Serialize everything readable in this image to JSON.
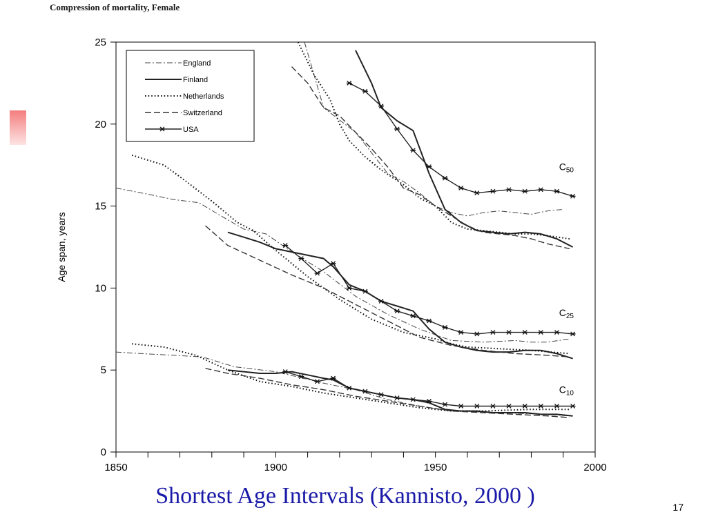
{
  "slide": {
    "title": "Shortest Age Intervals (Kannisto, 2000 )",
    "page_number": "17",
    "title_color": "#1a1aa8",
    "accent_color": "#f47e7e"
  },
  "chart_data": {
    "type": "line",
    "title": "Compression of mortality, Female",
    "xlabel": "",
    "ylabel": "Age span, years",
    "xlim": [
      1850,
      2000
    ],
    "ylim": [
      0,
      25
    ],
    "x_ticks": [
      1850,
      1900,
      1950,
      2000
    ],
    "y_ticks": [
      0,
      5,
      10,
      15,
      20,
      25
    ],
    "grid": false,
    "legend_position": "top-left",
    "annotations": [
      {
        "label": "C",
        "sub": "50",
        "x": 1991,
        "y": 17.2
      },
      {
        "label": "C",
        "sub": "25",
        "x": 1991,
        "y": 8.3
      },
      {
        "label": "C",
        "sub": "10",
        "x": 1991,
        "y": 3.6
      }
    ],
    "series": [
      {
        "name": "England",
        "style": "dashdot",
        "color": "#444444",
        "width": 1,
        "segments": {
          "C50": [
            [
              1909,
              25
            ],
            [
              1915,
              21
            ],
            [
              1925,
              19.5
            ],
            [
              1935,
              17
            ],
            [
              1940,
              16.5
            ],
            [
              1945,
              15.8
            ],
            [
              1950,
              15
            ],
            [
              1955,
              14.6
            ],
            [
              1960,
              14.4
            ],
            [
              1965,
              14.6
            ],
            [
              1970,
              14.7
            ],
            [
              1975,
              14.6
            ],
            [
              1980,
              14.5
            ],
            [
              1985,
              14.7
            ],
            [
              1990,
              14.8
            ]
          ],
          "C25": [
            [
              1850,
              16.1
            ],
            [
              1858,
              15.8
            ],
            [
              1868,
              15.4
            ],
            [
              1876,
              15.2
            ],
            [
              1882,
              14.5
            ],
            [
              1890,
              13.6
            ],
            [
              1897,
              13.3
            ],
            [
              1905,
              12.2
            ],
            [
              1915,
              11
            ],
            [
              1925,
              9.5
            ],
            [
              1935,
              8.4
            ],
            [
              1945,
              7.5
            ],
            [
              1955,
              6.8
            ],
            [
              1965,
              6.7
            ],
            [
              1975,
              6.8
            ],
            [
              1980,
              6.7
            ],
            [
              1985,
              6.7
            ],
            [
              1992,
              6.9
            ]
          ],
          "C10": [
            [
              1850,
              6.1
            ],
            [
              1858,
              6.0
            ],
            [
              1868,
              5.9
            ],
            [
              1877,
              5.8
            ],
            [
              1887,
              5.2
            ],
            [
              1900,
              4.9
            ],
            [
              1915,
              4.2
            ],
            [
              1925,
              3.8
            ],
            [
              1935,
              3.2
            ],
            [
              1945,
              2.8
            ],
            [
              1955,
              2.5
            ],
            [
              1970,
              2.4
            ],
            [
              1985,
              2.3
            ],
            [
              1992,
              2.2
            ]
          ]
        }
      },
      {
        "name": "Finland",
        "style": "solid",
        "color": "#222222",
        "width": 2,
        "segments": {
          "C50": [
            [
              1925,
              24.5
            ],
            [
              1930,
              22.5
            ],
            [
              1933,
              21
            ],
            [
              1938,
              20.2
            ],
            [
              1943,
              19.6
            ],
            [
              1948,
              17
            ],
            [
              1953,
              14.8
            ],
            [
              1958,
              14
            ],
            [
              1963,
              13.5
            ],
            [
              1968,
              13.4
            ],
            [
              1973,
              13.3
            ],
            [
              1978,
              13.4
            ],
            [
              1983,
              13.3
            ],
            [
              1988,
              13
            ],
            [
              1993,
              12.5
            ]
          ],
          "C25": [
            [
              1885,
              13.4
            ],
            [
              1890,
              13.1
            ],
            [
              1895,
              12.8
            ],
            [
              1900,
              12.4
            ],
            [
              1905,
              12.2
            ],
            [
              1910,
              12
            ],
            [
              1915,
              11.8
            ],
            [
              1918,
              11.3
            ],
            [
              1923,
              10.2
            ],
            [
              1928,
              9.8
            ],
            [
              1933,
              9.2
            ],
            [
              1938,
              8.9
            ],
            [
              1943,
              8.6
            ],
            [
              1948,
              7.5
            ],
            [
              1953,
              6.7
            ],
            [
              1958,
              6.4
            ],
            [
              1963,
              6.2
            ],
            [
              1968,
              6.1
            ],
            [
              1973,
              6.1
            ],
            [
              1978,
              6.2
            ],
            [
              1983,
              6.2
            ],
            [
              1988,
              6.0
            ],
            [
              1993,
              5.7
            ]
          ],
          "C10": [
            [
              1885,
              5.0
            ],
            [
              1890,
              4.9
            ],
            [
              1895,
              4.8
            ],
            [
              1900,
              4.8
            ],
            [
              1905,
              4.9
            ],
            [
              1910,
              4.7
            ],
            [
              1915,
              4.5
            ],
            [
              1918,
              4.4
            ],
            [
              1923,
              3.9
            ],
            [
              1928,
              3.7
            ],
            [
              1933,
              3.5
            ],
            [
              1938,
              3.3
            ],
            [
              1943,
              3.2
            ],
            [
              1948,
              3.0
            ],
            [
              1953,
              2.6
            ],
            [
              1958,
              2.5
            ],
            [
              1963,
              2.5
            ],
            [
              1968,
              2.4
            ],
            [
              1973,
              2.4
            ],
            [
              1978,
              2.4
            ],
            [
              1983,
              2.3
            ],
            [
              1988,
              2.3
            ],
            [
              1993,
              2.2
            ]
          ]
        }
      },
      {
        "name": "Netherlands",
        "style": "dotted",
        "color": "#111111",
        "width": 2,
        "segments": {
          "C50": [
            [
              1907,
              25
            ],
            [
              1912,
              23
            ],
            [
              1917,
              21.5
            ],
            [
              1920,
              20
            ],
            [
              1923,
              19
            ],
            [
              1928,
              18
            ],
            [
              1933,
              17.2
            ],
            [
              1940,
              16.3
            ],
            [
              1945,
              15.5
            ],
            [
              1950,
              15
            ],
            [
              1955,
              14
            ],
            [
              1960,
              13.6
            ],
            [
              1965,
              13.5
            ],
            [
              1970,
              13.4
            ],
            [
              1975,
              13.3
            ],
            [
              1980,
              13.3
            ],
            [
              1985,
              13.2
            ],
            [
              1992,
              13
            ]
          ],
          "C25": [
            [
              1855,
              18.1
            ],
            [
              1865,
              17.5
            ],
            [
              1872,
              16.5
            ],
            [
              1880,
              15.3
            ],
            [
              1888,
              14
            ],
            [
              1893,
              13.5
            ],
            [
              1900,
              12.3
            ],
            [
              1910,
              10.7
            ],
            [
              1920,
              9.3
            ],
            [
              1930,
              8.1
            ],
            [
              1940,
              7.3
            ],
            [
              1950,
              6.9
            ],
            [
              1955,
              6.6
            ],
            [
              1960,
              6.4
            ],
            [
              1970,
              6.3
            ],
            [
              1980,
              6.2
            ],
            [
              1992,
              6.0
            ]
          ],
          "C10": [
            [
              1855,
              6.6
            ],
            [
              1865,
              6.4
            ],
            [
              1875,
              5.9
            ],
            [
              1885,
              5.0
            ],
            [
              1895,
              4.3
            ],
            [
              1905,
              4.0
            ],
            [
              1915,
              3.6
            ],
            [
              1925,
              3.3
            ],
            [
              1935,
              3.0
            ],
            [
              1945,
              2.7
            ],
            [
              1955,
              2.5
            ],
            [
              1965,
              2.5
            ],
            [
              1980,
              2.6
            ],
            [
              1992,
              2.6
            ]
          ]
        }
      },
      {
        "name": "Switzerland",
        "style": "dashed",
        "color": "#333333",
        "width": 1.4,
        "segments": {
          "C50": [
            [
              1905,
              23.5
            ],
            [
              1910,
              22.5
            ],
            [
              1915,
              21
            ],
            [
              1920,
              20.5
            ],
            [
              1925,
              19.5
            ],
            [
              1930,
              18.5
            ],
            [
              1935,
              17.4
            ],
            [
              1940,
              16.1
            ],
            [
              1945,
              15.7
            ],
            [
              1950,
              15
            ],
            [
              1955,
              14.4
            ],
            [
              1960,
              13.8
            ],
            [
              1965,
              13.4
            ],
            [
              1970,
              13.3
            ],
            [
              1975,
              13.2
            ],
            [
              1980,
              13
            ],
            [
              1985,
              12.7
            ],
            [
              1992,
              12.4
            ]
          ],
          "C25": [
            [
              1878,
              13.8
            ],
            [
              1885,
              12.6
            ],
            [
              1895,
              11.7
            ],
            [
              1905,
              10.8
            ],
            [
              1915,
              10
            ],
            [
              1925,
              9.0
            ],
            [
              1935,
              8.0
            ],
            [
              1945,
              7.0
            ],
            [
              1955,
              6.5
            ],
            [
              1965,
              6.2
            ],
            [
              1975,
              6.0
            ],
            [
              1985,
              5.9
            ],
            [
              1992,
              5.8
            ]
          ],
          "C10": [
            [
              1878,
              5.1
            ],
            [
              1885,
              4.8
            ],
            [
              1895,
              4.5
            ],
            [
              1905,
              4.1
            ],
            [
              1915,
              3.8
            ],
            [
              1925,
              3.4
            ],
            [
              1935,
              3.1
            ],
            [
              1945,
              2.8
            ],
            [
              1955,
              2.5
            ],
            [
              1965,
              2.4
            ],
            [
              1975,
              2.3
            ],
            [
              1985,
              2.2
            ],
            [
              1992,
              2.1
            ]
          ]
        }
      },
      {
        "name": "USA",
        "style": "star",
        "color": "#222222",
        "width": 1.4,
        "segments": {
          "C50": [
            [
              1923,
              22.5
            ],
            [
              1928,
              22
            ],
            [
              1933,
              21.1
            ],
            [
              1938,
              19.7
            ],
            [
              1943,
              18.4
            ],
            [
              1948,
              17.4
            ],
            [
              1953,
              16.7
            ],
            [
              1958,
              16.1
            ],
            [
              1963,
              15.8
            ],
            [
              1968,
              15.9
            ],
            [
              1973,
              16
            ],
            [
              1978,
              15.9
            ],
            [
              1983,
              16
            ],
            [
              1988,
              15.9
            ],
            [
              1993,
              15.6
            ]
          ],
          "C25": [
            [
              1903,
              12.6
            ],
            [
              1908,
              11.8
            ],
            [
              1913,
              10.9
            ],
            [
              1918,
              11.5
            ],
            [
              1923,
              10
            ],
            [
              1928,
              9.8
            ],
            [
              1933,
              9.2
            ],
            [
              1938,
              8.6
            ],
            [
              1943,
              8.3
            ],
            [
              1948,
              8.0
            ],
            [
              1953,
              7.6
            ],
            [
              1958,
              7.3
            ],
            [
              1963,
              7.2
            ],
            [
              1968,
              7.3
            ],
            [
              1973,
              7.3
            ],
            [
              1978,
              7.3
            ],
            [
              1983,
              7.3
            ],
            [
              1988,
              7.3
            ],
            [
              1993,
              7.2
            ]
          ],
          "C10": [
            [
              1903,
              4.9
            ],
            [
              1908,
              4.6
            ],
            [
              1913,
              4.3
            ],
            [
              1918,
              4.5
            ],
            [
              1923,
              3.9
            ],
            [
              1928,
              3.7
            ],
            [
              1933,
              3.5
            ],
            [
              1938,
              3.3
            ],
            [
              1943,
              3.2
            ],
            [
              1948,
              3.1
            ],
            [
              1953,
              2.9
            ],
            [
              1958,
              2.8
            ],
            [
              1963,
              2.8
            ],
            [
              1968,
              2.8
            ],
            [
              1973,
              2.8
            ],
            [
              1978,
              2.8
            ],
            [
              1983,
              2.8
            ],
            [
              1988,
              2.8
            ],
            [
              1993,
              2.8
            ]
          ]
        }
      }
    ]
  }
}
